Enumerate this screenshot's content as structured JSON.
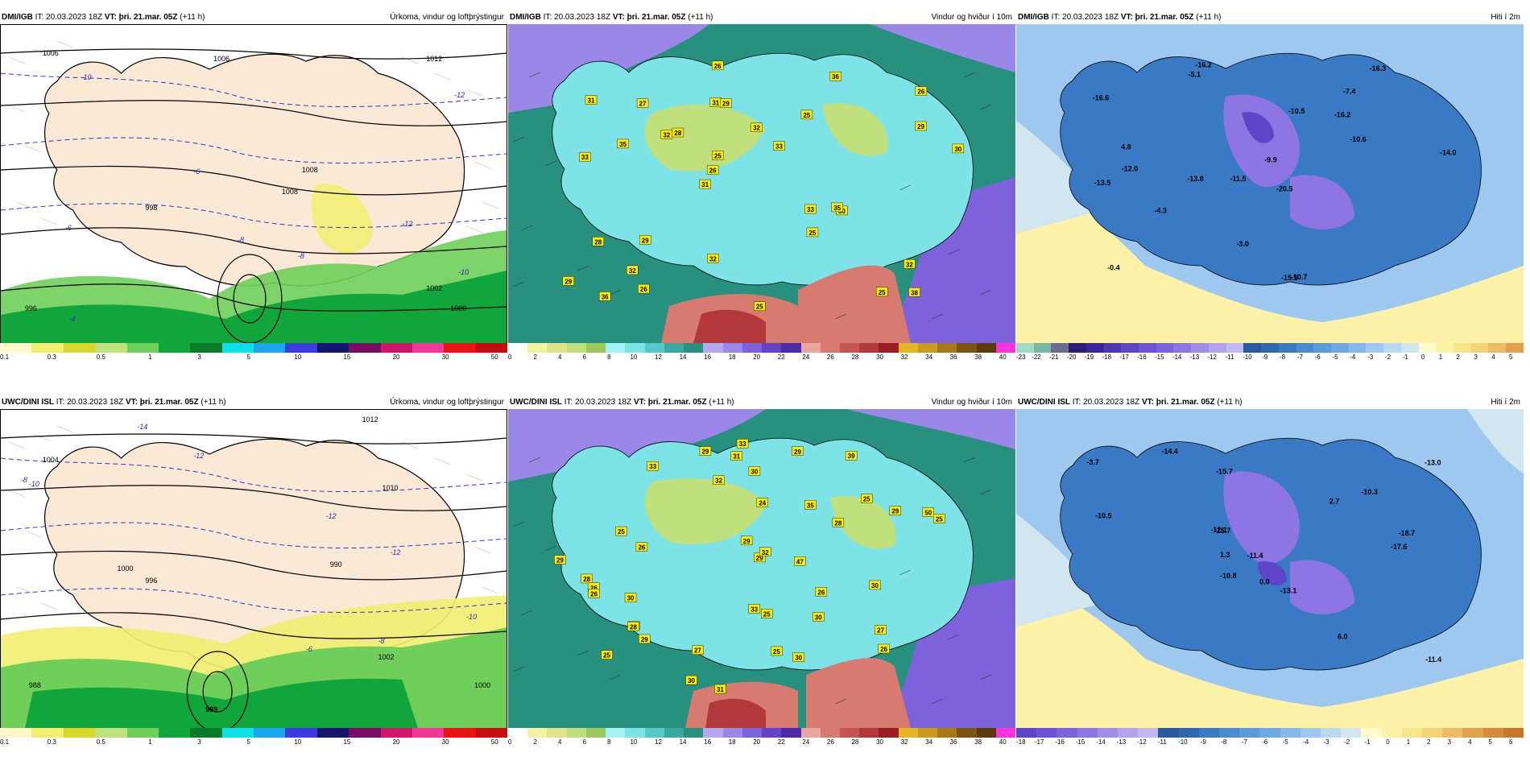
{
  "rows": [
    {
      "model": "DMI/IGB",
      "panels": [
        {
          "kind": "precip",
          "it_label": "IT: 20.03.2023 18Z",
          "vt_label": "VT: þri. 21.mar. 05Z",
          "lead": "(+11 h)",
          "title": "Úrkoma, vindur og loftþrýstingur",
          "isobars": [
            "1006",
            "1008",
            "1008",
            "1006",
            "1012",
            "1002",
            "1000",
            "998",
            "996"
          ],
          "temps": [
            "-10",
            "-8",
            "-6",
            "-4",
            "-12",
            "-10",
            "-8",
            "-12",
            "-6"
          ]
        },
        {
          "kind": "wind",
          "it_label": "IT: 20.03.2023 18Z",
          "vt_label": "VT: þri. 21.mar. 05Z",
          "lead": "(+11 h)",
          "title": "Vindur og hviður í 10m",
          "gusts": [
            "38",
            "33",
            "26",
            "31",
            "25",
            "36",
            "31",
            "32",
            "28",
            "28",
            "29",
            "32",
            "29",
            "33",
            "30",
            "31",
            "26",
            "30",
            "33",
            "29",
            "26",
            "32",
            "25",
            "27",
            "36",
            "29",
            "25",
            "32",
            "35",
            "25",
            "32",
            "35",
            "25",
            "26"
          ]
        },
        {
          "kind": "temp",
          "it_label": "IT: 20.03.2023 18Z",
          "vt_label": "VT: þri. 21.mar. 05Z",
          "lead": "(+11 h)",
          "title": "Hiti í 2m",
          "temps": [
            "-16.2",
            "-7.4",
            "-14.0",
            "-11.5",
            "-20.5",
            "-12.0",
            "-16.6",
            "-16.2",
            "-13.5",
            "-10.5",
            "-9.9",
            "-0.4",
            "-5.1",
            "-13.8",
            "-15.5",
            "-10.7",
            "-3.0",
            "-16.3",
            "-10.6",
            "-4.3",
            "4.8"
          ]
        }
      ]
    },
    {
      "model": "UWC/DINI ISL",
      "panels": [
        {
          "kind": "precip",
          "it_label": "IT: 20.03.2023 18Z",
          "vt_label": "VT: þri. 21.mar. 05Z",
          "lead": "(+11 h)",
          "title": "Úrkoma, vindur og loftþrýstingur",
          "isobars": [
            "1004",
            "1012",
            "1010",
            "1000",
            "996",
            "990",
            "1002",
            "1000",
            "988",
            "989"
          ],
          "temps": [
            "-14",
            "-12",
            "-10",
            "-8",
            "-12",
            "-12",
            "-10",
            "-8",
            "-6"
          ]
        },
        {
          "kind": "wind",
          "it_label": "IT: 20.03.2023 18Z",
          "vt_label": "VT: þri. 21.mar. 05Z",
          "lead": "(+11 h)",
          "title": "Vindur og hviður í 10m",
          "gusts": [
            "25",
            "39",
            "33",
            "25",
            "25",
            "26",
            "30",
            "31",
            "29",
            "28",
            "28",
            "33",
            "30",
            "29",
            "31",
            "29",
            "26",
            "29",
            "28",
            "30",
            "30",
            "31",
            "32",
            "32",
            "29",
            "27",
            "26",
            "29",
            "24",
            "26",
            "25",
            "29",
            "25",
            "33",
            "27",
            "26",
            "50",
            "47",
            "35",
            "30",
            "25",
            "30"
          ]
        },
        {
          "kind": "temp",
          "it_label": "IT: 20.03.2023 18Z",
          "vt_label": "VT: þri. 21.mar. 05Z",
          "lead": "(+11 h)",
          "title": "Hiti í 2m",
          "temps": [
            "-10.3",
            "-11.4",
            "-15.7",
            "-14.4",
            "-15.7",
            "-13.1",
            "-12.1",
            "-10.8",
            "-11.4",
            "0.0",
            "-17.6",
            "-18.7",
            "-13.0",
            "-10.5",
            "2.7",
            "-3.7",
            "1.3",
            "6.0"
          ]
        }
      ]
    }
  ],
  "legends": {
    "precip": {
      "colors": [
        "#fff8c8",
        "#f2ee6f",
        "#d8d72a",
        "#bfe37a",
        "#6fcf5a",
        "#11a63b",
        "#0a7a2b",
        "#0fe0e8",
        "#1aa7f0",
        "#3d3ae0",
        "#15156e",
        "#7a0c63",
        "#d0156d",
        "#f03898",
        "#e81414",
        "#c40d0d"
      ],
      "ticks": [
        "0.1",
        "0.3",
        "0.5",
        "1",
        "3",
        "5",
        "10",
        "15",
        "20",
        "30",
        "50"
      ]
    },
    "wind": {
      "colors": [
        "#ffffff",
        "#f4f2a3",
        "#e0e58a",
        "#bfe07d",
        "#9cc85e",
        "#a5f2f2",
        "#7ee3e6",
        "#54c9ca",
        "#3aa9a2",
        "#27907e",
        "#b6a8ef",
        "#9b87e8",
        "#7d62dc",
        "#6541c8",
        "#4d2ba8",
        "#e9a59e",
        "#d77a70",
        "#c65451",
        "#b2383c",
        "#9c1c24",
        "#e4b624",
        "#c99a1b",
        "#a87716",
        "#7a5410",
        "#5b3a0c",
        "#ff33dd"
      ],
      "ticks": [
        "0",
        "2",
        "4",
        "6",
        "8",
        "10",
        "12",
        "14",
        "16",
        "18",
        "20",
        "22",
        "24",
        "26",
        "28",
        "30",
        "32",
        "34",
        "36",
        "38",
        "40"
      ]
    },
    "temp_top": {
      "colors": [
        "#9edac6",
        "#7ab6a6",
        "#6b6b90",
        "#2f1b7a",
        "#3c2598",
        "#4e36b4",
        "#5e44c6",
        "#6d52d5",
        "#7c63dd",
        "#8d76e3",
        "#a08ce9",
        "#b3a3ef",
        "#c2b8f4",
        "#2a5aa0",
        "#2f67b3",
        "#3a79c4",
        "#4a8ad1",
        "#5b9adb",
        "#6da9e3",
        "#84b9ea",
        "#9ec8ef",
        "#b9d8f2",
        "#d2e6f0",
        "#fffbd0",
        "#fdf2a8",
        "#f9e58c",
        "#f4d27a",
        "#ecbb65",
        "#e2a24d"
      ],
      "ticks": [
        "-23",
        "-22",
        "-21",
        "-20",
        "-19",
        "-18",
        "-17",
        "-16",
        "-15",
        "-14",
        "-13",
        "-12",
        "-11",
        "-10",
        "-9",
        "-8",
        "-7",
        "-6",
        "-5",
        "-4",
        "-3",
        "-2",
        "-1",
        "0",
        "1",
        "2",
        "3",
        "4",
        "5"
      ]
    },
    "temp_bottom": {
      "colors": [
        "#5e44c6",
        "#6d52d5",
        "#7c63dd",
        "#8d76e3",
        "#a08ce9",
        "#b3a3ef",
        "#c2b8f4",
        "#2a5aa0",
        "#2f67b3",
        "#3a79c4",
        "#4a8ad1",
        "#5b9adb",
        "#6da9e3",
        "#84b9ea",
        "#9ec8ef",
        "#b9d8f2",
        "#d2e6f0",
        "#fffbd0",
        "#fdf2a8",
        "#f9e58c",
        "#f4d27a",
        "#ecbb65",
        "#e2a24d",
        "#d68a3a",
        "#c87530"
      ],
      "ticks": [
        "-18",
        "-17",
        "-16",
        "-15",
        "-14",
        "-13",
        "-12",
        "-11",
        "-10",
        "-9",
        "-8",
        "-7",
        "-6",
        "-5",
        "-4",
        "-3",
        "-2",
        "-1",
        "0",
        "1",
        "2",
        "3",
        "4",
        "5",
        "6"
      ]
    }
  }
}
